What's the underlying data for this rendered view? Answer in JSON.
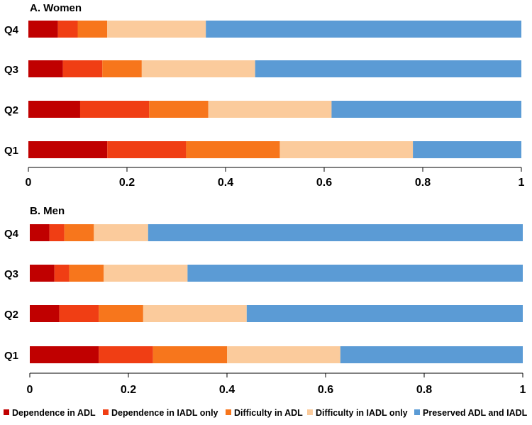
{
  "chart_data": [
    {
      "type": "bar",
      "orientation": "horizontal",
      "stacked": true,
      "title": "A. Women",
      "categories": [
        "Q4",
        "Q3",
        "Q2",
        "Q1"
      ],
      "xlim": [
        0,
        1
      ],
      "xticks": [
        "0",
        "0.2",
        "0.4",
        "0.6",
        "0.8",
        "1"
      ],
      "series": [
        {
          "name": "Dependence in ADL",
          "color": "#c00000",
          "values": [
            0.06,
            0.07,
            0.105,
            0.16
          ]
        },
        {
          "name": "Dependence in IADL only",
          "color": "#f03e14",
          "values": [
            0.04,
            0.08,
            0.14,
            0.16
          ]
        },
        {
          "name": "Difficulty in ADL",
          "color": "#f7761c",
          "values": [
            0.06,
            0.08,
            0.12,
            0.19
          ]
        },
        {
          "name": "Difficulty in IADL only",
          "color": "#fbcb9c",
          "values": [
            0.2,
            0.23,
            0.25,
            0.27
          ]
        },
        {
          "name": "Preserved ADL and IADL",
          "color": "#5b9bd5",
          "values": [
            0.64,
            0.54,
            0.385,
            0.22
          ]
        }
      ]
    },
    {
      "type": "bar",
      "orientation": "horizontal",
      "stacked": true,
      "title": "B. Men",
      "categories": [
        "Q4",
        "Q3",
        "Q2",
        "Q1"
      ],
      "xlim": [
        0,
        1
      ],
      "xticks": [
        "0",
        "0.2",
        "0.4",
        "0.6",
        "0.8",
        "1"
      ],
      "series": [
        {
          "name": "Dependence in ADL",
          "color": "#c00000",
          "values": [
            0.04,
            0.05,
            0.06,
            0.14
          ]
        },
        {
          "name": "Dependence in IADL only",
          "color": "#f03e14",
          "values": [
            0.03,
            0.03,
            0.08,
            0.11
          ]
        },
        {
          "name": "Difficulty in ADL",
          "color": "#f7761c",
          "values": [
            0.06,
            0.07,
            0.09,
            0.15
          ]
        },
        {
          "name": "Difficulty in IADL only",
          "color": "#fbcb9c",
          "values": [
            0.11,
            0.17,
            0.21,
            0.23
          ]
        },
        {
          "name": "Preserved ADL and IADL",
          "color": "#5b9bd5",
          "values": [
            0.76,
            0.68,
            0.56,
            0.37
          ]
        }
      ]
    }
  ],
  "legend": [
    {
      "label": "Dependence in ADL",
      "color": "#c00000"
    },
    {
      "label": "Dependence in IADL only",
      "color": "#f03e14"
    },
    {
      "label": "Difficulty in ADL",
      "color": "#f7761c"
    },
    {
      "label": "Difficulty in IADL only",
      "color": "#fbcb9c"
    },
    {
      "label": "Preserved ADL and IADL",
      "color": "#5b9bd5"
    }
  ]
}
